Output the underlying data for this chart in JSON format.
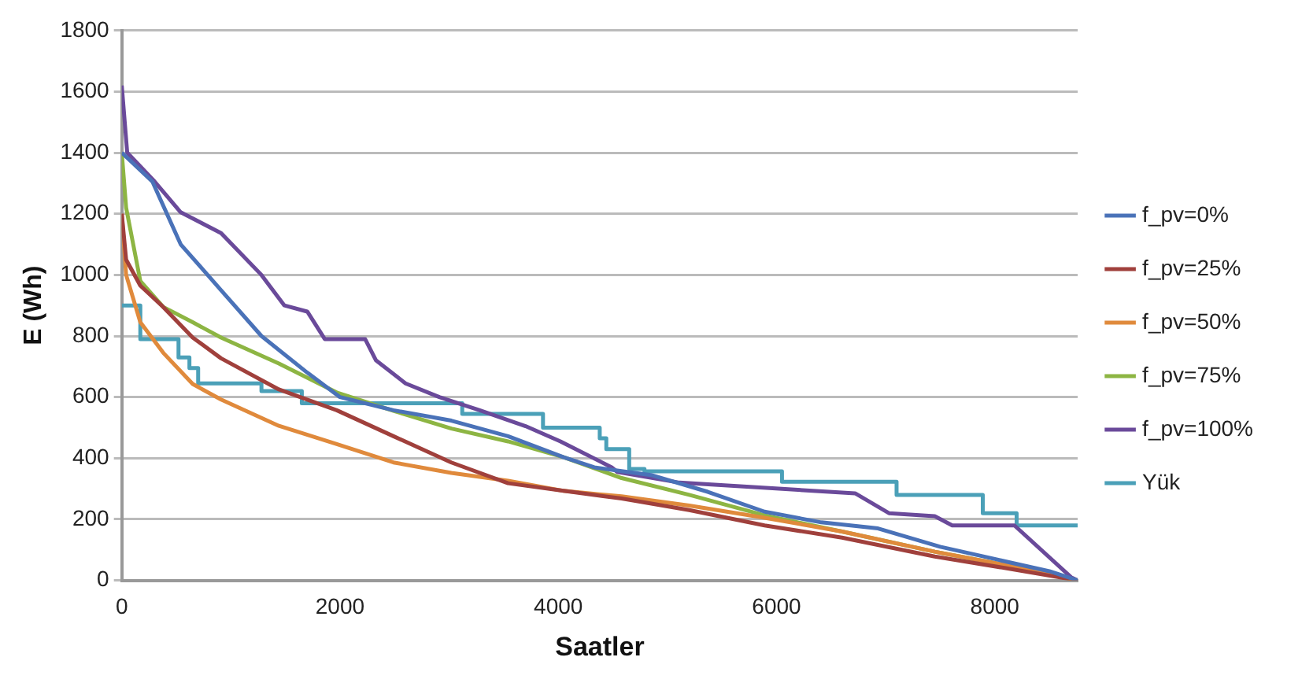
{
  "chart_data": {
    "type": "line",
    "xlabel": "Saatler",
    "ylabel": "E (Wh)",
    "xlim": [
      0,
      8760
    ],
    "xticks": [
      0,
      2000,
      4000,
      6000,
      8000
    ],
    "ylim": [
      0,
      1800
    ],
    "yticks": [
      0,
      200,
      400,
      600,
      800,
      1000,
      1200,
      1400,
      1600,
      1800
    ],
    "grid": "y",
    "legend": "right",
    "marker": "none",
    "line_style": "solid",
    "series": [
      {
        "name": "f_pv=0%",
        "color": "#4a72b8",
        "x": [
          0,
          280,
          540,
          910,
          1280,
          1700,
          2000,
          2490,
          3020,
          3540,
          4050,
          4330,
          4850,
          5370,
          5890,
          6410,
          6930,
          7500,
          8000,
          8500,
          8760
        ],
        "values": [
          1400,
          1306,
          1100,
          950,
          800,
          680,
          600,
          557,
          523,
          472,
          403,
          370,
          345,
          290,
          225,
          190,
          170,
          110,
          70,
          30,
          0
        ]
      },
      {
        "name": "f_pv=25%",
        "color": "#a0403c",
        "x": [
          0,
          40,
          170,
          380,
          650,
          910,
          1440,
          1970,
          2490,
          3020,
          3540,
          4050,
          4580,
          5200,
          5890,
          6600,
          7450,
          8100,
          8760
        ],
        "values": [
          1200,
          1050,
          965,
          895,
          795,
          727,
          625,
          557,
          472,
          386,
          318,
          293,
          268,
          230,
          180,
          140,
          78,
          40,
          0
        ]
      },
      {
        "name": "f_pv=50%",
        "color": "#e08a3c",
        "x": [
          0,
          40,
          170,
          380,
          650,
          910,
          1440,
          1970,
          2490,
          3020,
          3540,
          4050,
          4580,
          5200,
          5890,
          6600,
          7450,
          8100,
          8760
        ],
        "values": [
          1200,
          1000,
          845,
          745,
          643,
          592,
          506,
          446,
          386,
          352,
          326,
          293,
          275,
          245,
          205,
          160,
          94,
          50,
          0
        ]
      },
      {
        "name": "f_pv=75%",
        "color": "#8db543",
        "x": [
          0,
          40,
          170,
          380,
          650,
          910,
          1440,
          1970,
          2490,
          3020,
          3540,
          4050,
          4580,
          5200,
          5890,
          6600,
          7450,
          8100,
          8760
        ],
        "values": [
          1400,
          1220,
          980,
          895,
          845,
          795,
          710,
          615,
          555,
          497,
          455,
          403,
          335,
          280,
          213,
          160,
          94,
          50,
          0
        ]
      },
      {
        "name": "f_pv=100%",
        "color": "#6a4a9a",
        "x": [
          0,
          50,
          300,
          540,
          910,
          1280,
          1490,
          1700,
          1860,
          2230,
          2330,
          2600,
          2910,
          3280,
          3700,
          4020,
          4490,
          4540,
          5110,
          6720,
          7030,
          7450,
          7610,
          8180,
          8700,
          8760
        ],
        "values": [
          1620,
          1400,
          1306,
          1205,
          1137,
          1000,
          900,
          880,
          790,
          790,
          720,
          645,
          600,
          557,
          505,
          455,
          370,
          355,
          320,
          285,
          220,
          210,
          180,
          180,
          10,
          0
        ]
      },
      {
        "name": "Yük",
        "type": "step",
        "color": "#4ba0b8",
        "x": [
          0,
          170,
          520,
          620,
          700,
          1280,
          1650,
          3120,
          3860,
          4380,
          4440,
          4650,
          4790,
          6050,
          7100,
          7890,
          8200,
          8760
        ],
        "values": [
          900,
          790,
          730,
          695,
          645,
          620,
          580,
          545,
          500,
          465,
          430,
          365,
          357,
          323,
          280,
          220,
          180,
          180
        ]
      }
    ]
  }
}
